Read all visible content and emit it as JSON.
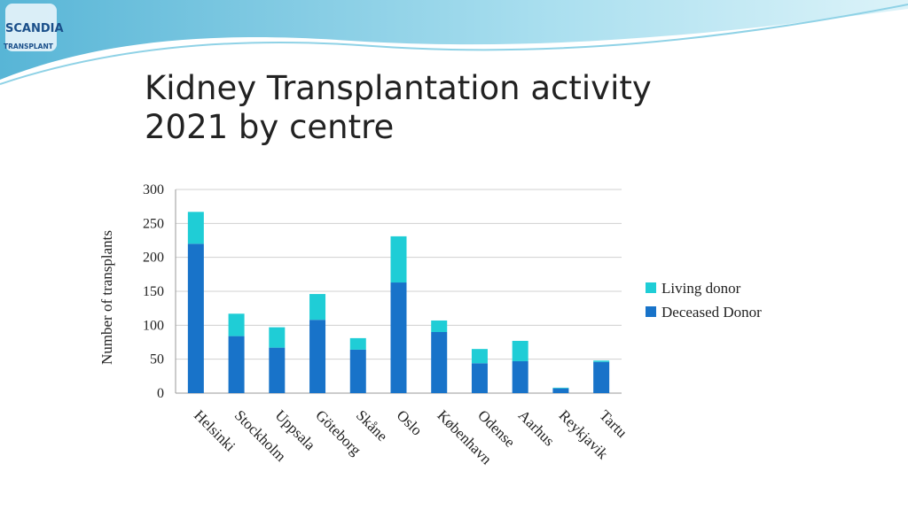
{
  "logo": {
    "name": "SCANDIA",
    "subtitle": "TRANSPLANT"
  },
  "chart_data": {
    "type": "stacked_bar",
    "title": [
      "Kidney Transplantation activity",
      "2021 by centre"
    ],
    "y_label": "Number of transplants",
    "categories": [
      "Helsinki",
      "Stockholm",
      "Uppsala",
      "Göteborg",
      "Skåne",
      "Oslo",
      "København",
      "Odense",
      "Aarhus",
      "Reykjavik",
      "Tartu"
    ],
    "series": [
      {
        "name": "Living donor",
        "color": "#1fcdd6",
        "values": [
          47,
          33,
          30,
          38,
          17,
          68,
          17,
          21,
          30,
          1,
          2
        ]
      },
      {
        "name": "Deceased Donor",
        "color": "#1873c9",
        "values": [
          220,
          84,
          67,
          108,
          64,
          163,
          90,
          44,
          47,
          7,
          46
        ]
      }
    ],
    "ylim": [
      0,
      300
    ],
    "yticks": [
      0,
      50,
      100,
      150,
      200,
      250,
      300
    ],
    "grid": true,
    "legend": "right"
  }
}
